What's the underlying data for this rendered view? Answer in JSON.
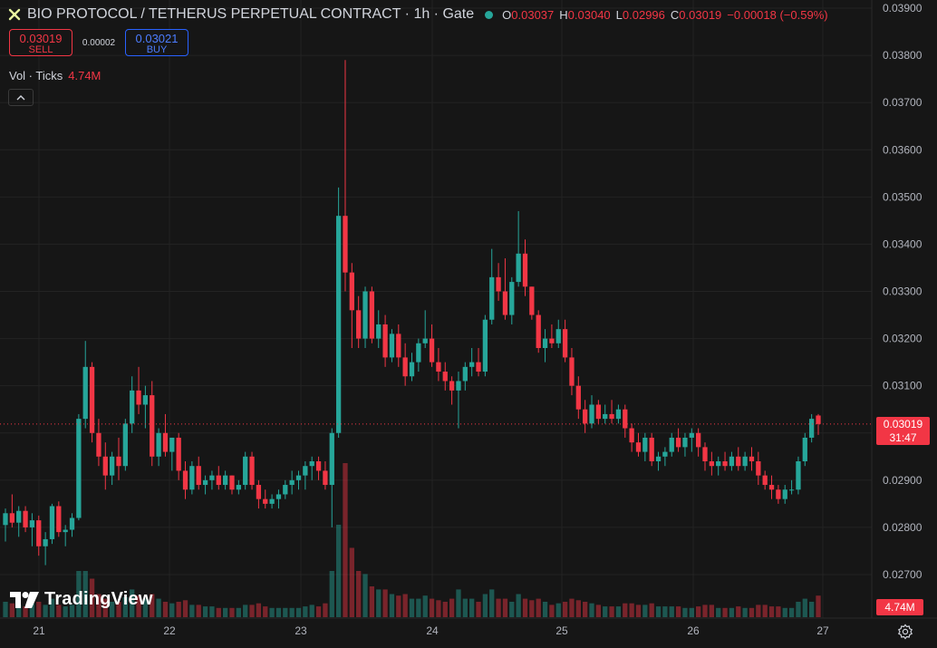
{
  "header": {
    "title": "BIO PROTOCOL / TETHERUS PERPETUAL CONTRACT · 1h · Gate",
    "logo_icon": "bio-protocol-logo",
    "status_dot_color": "#26a69a",
    "ohlc": {
      "o_key": "O",
      "o_val": "0.03037",
      "h_key": "H",
      "h_val": "0.03040",
      "l_key": "L",
      "l_val": "0.02996",
      "c_key": "C",
      "c_val": "0.03019",
      "change": "−0.00018 (−0.59%)"
    }
  },
  "trade": {
    "sell_price": "0.03019",
    "sell_label": "SELL",
    "spread": "0.00002",
    "buy_price": "0.03021",
    "buy_label": "BUY"
  },
  "volume_legend": {
    "label": "Vol · Ticks",
    "value": "4.74M"
  },
  "collapse_icon": "chevron-up-icon",
  "watermark": "TradingView",
  "current_price_tag": {
    "price": "0.03019",
    "countdown": "31:47"
  },
  "volume_tag": "4.74M",
  "colors": {
    "up": "#26a69a",
    "down": "#f23645",
    "background": "#161616",
    "grid": "#232323"
  },
  "chart_data": {
    "type": "candlestick",
    "title": "BIO PROTOCOL / TETHERUS PERPETUAL CONTRACT · 1h · Gate",
    "ylim": [
      0.0262,
      0.0391
    ],
    "y_ticks": [
      "0.03900",
      "0.03800",
      "0.03700",
      "0.03600",
      "0.03500",
      "0.03400",
      "0.03300",
      "0.03200",
      "0.03100",
      "0.03000",
      "0.02900",
      "0.02800",
      "0.02700"
    ],
    "y_tick_values": [
      0.039,
      0.038,
      0.037,
      0.036,
      0.035,
      0.034,
      0.033,
      0.032,
      0.031,
      0.03,
      0.029,
      0.028,
      0.027
    ],
    "x_ticks": [
      "21",
      "22",
      "23",
      "24",
      "25",
      "26",
      "27"
    ],
    "last_price": 0.03019,
    "candles": [
      [
        0.02805,
        0.0284,
        0.0277,
        0.0283,
        0.1
      ],
      [
        0.0283,
        0.0287,
        0.028,
        0.0281,
        0.09
      ],
      [
        0.0281,
        0.02845,
        0.0278,
        0.02835,
        0.08
      ],
      [
        0.02835,
        0.02845,
        0.0279,
        0.028,
        0.07
      ],
      [
        0.028,
        0.0283,
        0.0276,
        0.02815,
        0.09
      ],
      [
        0.02815,
        0.02825,
        0.0274,
        0.0276,
        0.1
      ],
      [
        0.0276,
        0.0279,
        0.0272,
        0.02775,
        0.08
      ],
      [
        0.02775,
        0.0285,
        0.02765,
        0.02845,
        0.12
      ],
      [
        0.02845,
        0.02855,
        0.0278,
        0.0279,
        0.08
      ],
      [
        0.0279,
        0.02805,
        0.0276,
        0.02795,
        0.07
      ],
      [
        0.02795,
        0.0283,
        0.0278,
        0.0282,
        0.08
      ],
      [
        0.0282,
        0.0304,
        0.02815,
        0.0303,
        0.3
      ],
      [
        0.0303,
        0.03195,
        0.0301,
        0.0314,
        0.3
      ],
      [
        0.0314,
        0.0315,
        0.0298,
        0.03,
        0.25
      ],
      [
        0.03,
        0.0303,
        0.0293,
        0.0295,
        0.15
      ],
      [
        0.0295,
        0.0298,
        0.0288,
        0.0291,
        0.12
      ],
      [
        0.0291,
        0.0296,
        0.0289,
        0.0295,
        0.1
      ],
      [
        0.0295,
        0.0299,
        0.029,
        0.0293,
        0.1
      ],
      [
        0.0293,
        0.0303,
        0.0292,
        0.0302,
        0.13
      ],
      [
        0.0302,
        0.0312,
        0.03,
        0.0309,
        0.18
      ],
      [
        0.0309,
        0.0314,
        0.0304,
        0.0306,
        0.14
      ],
      [
        0.0306,
        0.031,
        0.0301,
        0.0308,
        0.12
      ],
      [
        0.0308,
        0.0311,
        0.0293,
        0.0295,
        0.15
      ],
      [
        0.0295,
        0.0301,
        0.0293,
        0.03,
        0.12
      ],
      [
        0.03,
        0.0304,
        0.0295,
        0.0296,
        0.1
      ],
      [
        0.0296,
        0.0299,
        0.0292,
        0.0299,
        0.09
      ],
      [
        0.0299,
        0.03,
        0.029,
        0.0292,
        0.1
      ],
      [
        0.0292,
        0.0294,
        0.0286,
        0.0288,
        0.11
      ],
      [
        0.0288,
        0.0294,
        0.0287,
        0.0293,
        0.08
      ],
      [
        0.0293,
        0.0295,
        0.0288,
        0.0289,
        0.08
      ],
      [
        0.0289,
        0.0291,
        0.0287,
        0.029,
        0.07
      ],
      [
        0.029,
        0.0292,
        0.0288,
        0.0291,
        0.07
      ],
      [
        0.0291,
        0.0293,
        0.0288,
        0.0289,
        0.06
      ],
      [
        0.0289,
        0.0292,
        0.0288,
        0.0291,
        0.06
      ],
      [
        0.0291,
        0.0291,
        0.0287,
        0.0288,
        0.06
      ],
      [
        0.0288,
        0.029,
        0.0287,
        0.0289,
        0.06
      ],
      [
        0.0289,
        0.0296,
        0.0288,
        0.0295,
        0.08
      ],
      [
        0.0295,
        0.0296,
        0.0288,
        0.0289,
        0.08
      ],
      [
        0.0289,
        0.029,
        0.0284,
        0.0286,
        0.09
      ],
      [
        0.0286,
        0.0288,
        0.0284,
        0.0285,
        0.07
      ],
      [
        0.0285,
        0.0287,
        0.0284,
        0.0286,
        0.06
      ],
      [
        0.0286,
        0.0288,
        0.0284,
        0.0287,
        0.06
      ],
      [
        0.0287,
        0.029,
        0.0286,
        0.0289,
        0.06
      ],
      [
        0.0289,
        0.0292,
        0.0287,
        0.029,
        0.06
      ],
      [
        0.029,
        0.0292,
        0.0288,
        0.0291,
        0.06
      ],
      [
        0.0291,
        0.0294,
        0.0288,
        0.0293,
        0.07
      ],
      [
        0.0293,
        0.0295,
        0.029,
        0.0294,
        0.08
      ],
      [
        0.0294,
        0.0295,
        0.029,
        0.0292,
        0.07
      ],
      [
        0.0292,
        0.0294,
        0.0288,
        0.0289,
        0.09
      ],
      [
        0.0289,
        0.0301,
        0.028,
        0.03,
        0.3
      ],
      [
        0.03,
        0.0352,
        0.0299,
        0.0346,
        0.6
      ],
      [
        0.0346,
        0.0379,
        0.033,
        0.0334,
        1.0
      ],
      [
        0.0334,
        0.0336,
        0.0318,
        0.0326,
        0.45
      ],
      [
        0.0326,
        0.0329,
        0.0318,
        0.032,
        0.3
      ],
      [
        0.032,
        0.0331,
        0.0318,
        0.033,
        0.28
      ],
      [
        0.033,
        0.0331,
        0.0319,
        0.032,
        0.2
      ],
      [
        0.032,
        0.0326,
        0.0318,
        0.0323,
        0.18
      ],
      [
        0.0323,
        0.0325,
        0.0314,
        0.0316,
        0.18
      ],
      [
        0.0316,
        0.0322,
        0.0315,
        0.0321,
        0.15
      ],
      [
        0.0321,
        0.0323,
        0.0314,
        0.0316,
        0.14
      ],
      [
        0.0316,
        0.0319,
        0.031,
        0.0312,
        0.15
      ],
      [
        0.0312,
        0.0317,
        0.0311,
        0.0315,
        0.12
      ],
      [
        0.0315,
        0.032,
        0.0313,
        0.0319,
        0.12
      ],
      [
        0.0319,
        0.0326,
        0.0318,
        0.032,
        0.14
      ],
      [
        0.032,
        0.0323,
        0.0314,
        0.0315,
        0.12
      ],
      [
        0.0315,
        0.0318,
        0.0311,
        0.0313,
        0.11
      ],
      [
        0.0313,
        0.0315,
        0.0309,
        0.0311,
        0.1
      ],
      [
        0.0311,
        0.0312,
        0.0306,
        0.0309,
        0.12
      ],
      [
        0.0309,
        0.0313,
        0.0301,
        0.0311,
        0.18
      ],
      [
        0.0311,
        0.0315,
        0.0309,
        0.0314,
        0.12
      ],
      [
        0.0314,
        0.0318,
        0.0312,
        0.0315,
        0.12
      ],
      [
        0.0315,
        0.0318,
        0.0312,
        0.0313,
        0.1
      ],
      [
        0.0313,
        0.0325,
        0.0312,
        0.0324,
        0.15
      ],
      [
        0.0324,
        0.0339,
        0.0323,
        0.0333,
        0.18
      ],
      [
        0.0333,
        0.0336,
        0.0328,
        0.033,
        0.12
      ],
      [
        0.033,
        0.0337,
        0.0324,
        0.0325,
        0.12
      ],
      [
        0.0325,
        0.0333,
        0.0323,
        0.0332,
        0.1
      ],
      [
        0.0332,
        0.0347,
        0.0331,
        0.0338,
        0.15
      ],
      [
        0.0338,
        0.0341,
        0.0329,
        0.0331,
        0.12
      ],
      [
        0.0331,
        0.0331,
        0.0324,
        0.0325,
        0.11
      ],
      [
        0.0325,
        0.0326,
        0.0317,
        0.0318,
        0.12
      ],
      [
        0.0318,
        0.0322,
        0.0315,
        0.032,
        0.1
      ],
      [
        0.032,
        0.0323,
        0.0318,
        0.0319,
        0.08
      ],
      [
        0.0319,
        0.0324,
        0.0318,
        0.0322,
        0.09
      ],
      [
        0.0322,
        0.0324,
        0.0315,
        0.0316,
        0.1
      ],
      [
        0.0316,
        0.0318,
        0.0308,
        0.031,
        0.12
      ],
      [
        0.031,
        0.0312,
        0.0303,
        0.0305,
        0.11
      ],
      [
        0.0305,
        0.0307,
        0.03,
        0.0302,
        0.1
      ],
      [
        0.0302,
        0.0308,
        0.0301,
        0.0306,
        0.09
      ],
      [
        0.0306,
        0.0307,
        0.0302,
        0.0303,
        0.08
      ],
      [
        0.0303,
        0.0306,
        0.0302,
        0.0304,
        0.07
      ],
      [
        0.0304,
        0.0307,
        0.0302,
        0.0303,
        0.07
      ],
      [
        0.0303,
        0.0306,
        0.0302,
        0.0305,
        0.07
      ],
      [
        0.0305,
        0.0306,
        0.0299,
        0.0301,
        0.09
      ],
      [
        0.0301,
        0.0302,
        0.0296,
        0.0298,
        0.09
      ],
      [
        0.0298,
        0.03,
        0.0295,
        0.0296,
        0.08
      ],
      [
        0.0296,
        0.03,
        0.0294,
        0.0299,
        0.08
      ],
      [
        0.0299,
        0.03,
        0.0293,
        0.0294,
        0.09
      ],
      [
        0.0294,
        0.0296,
        0.0292,
        0.0295,
        0.07
      ],
      [
        0.0295,
        0.0297,
        0.0293,
        0.0296,
        0.07
      ],
      [
        0.0296,
        0.03,
        0.0295,
        0.0299,
        0.07
      ],
      [
        0.0299,
        0.0301,
        0.0296,
        0.0297,
        0.07
      ],
      [
        0.0297,
        0.03,
        0.0295,
        0.0299,
        0.06
      ],
      [
        0.0299,
        0.0301,
        0.0296,
        0.03,
        0.06
      ],
      [
        0.03,
        0.0301,
        0.0295,
        0.0297,
        0.07
      ],
      [
        0.0297,
        0.0298,
        0.0292,
        0.0294,
        0.08
      ],
      [
        0.0294,
        0.0296,
        0.0291,
        0.0293,
        0.08
      ],
      [
        0.0293,
        0.0295,
        0.0291,
        0.0294,
        0.06
      ],
      [
        0.0294,
        0.0296,
        0.0292,
        0.0293,
        0.06
      ],
      [
        0.0293,
        0.0296,
        0.0292,
        0.0295,
        0.06
      ],
      [
        0.0295,
        0.0297,
        0.0292,
        0.0293,
        0.07
      ],
      [
        0.0293,
        0.0296,
        0.0292,
        0.0295,
        0.06
      ],
      [
        0.0295,
        0.0297,
        0.0292,
        0.0294,
        0.06
      ],
      [
        0.0294,
        0.0296,
        0.0289,
        0.0291,
        0.08
      ],
      [
        0.0291,
        0.0292,
        0.0288,
        0.0289,
        0.08
      ],
      [
        0.0289,
        0.0291,
        0.0286,
        0.0288,
        0.07
      ],
      [
        0.0288,
        0.0289,
        0.0285,
        0.0286,
        0.07
      ],
      [
        0.0286,
        0.0289,
        0.0285,
        0.0288,
        0.06
      ],
      [
        0.0288,
        0.029,
        0.0287,
        0.0288,
        0.06
      ],
      [
        0.0288,
        0.0295,
        0.0287,
        0.0294,
        0.1
      ],
      [
        0.0294,
        0.03,
        0.0293,
        0.0299,
        0.12
      ],
      [
        0.0299,
        0.0304,
        0.0298,
        0.0303,
        0.1
      ],
      [
        0.03037,
        0.0304,
        0.02996,
        0.03019,
        0.14
      ]
    ]
  }
}
